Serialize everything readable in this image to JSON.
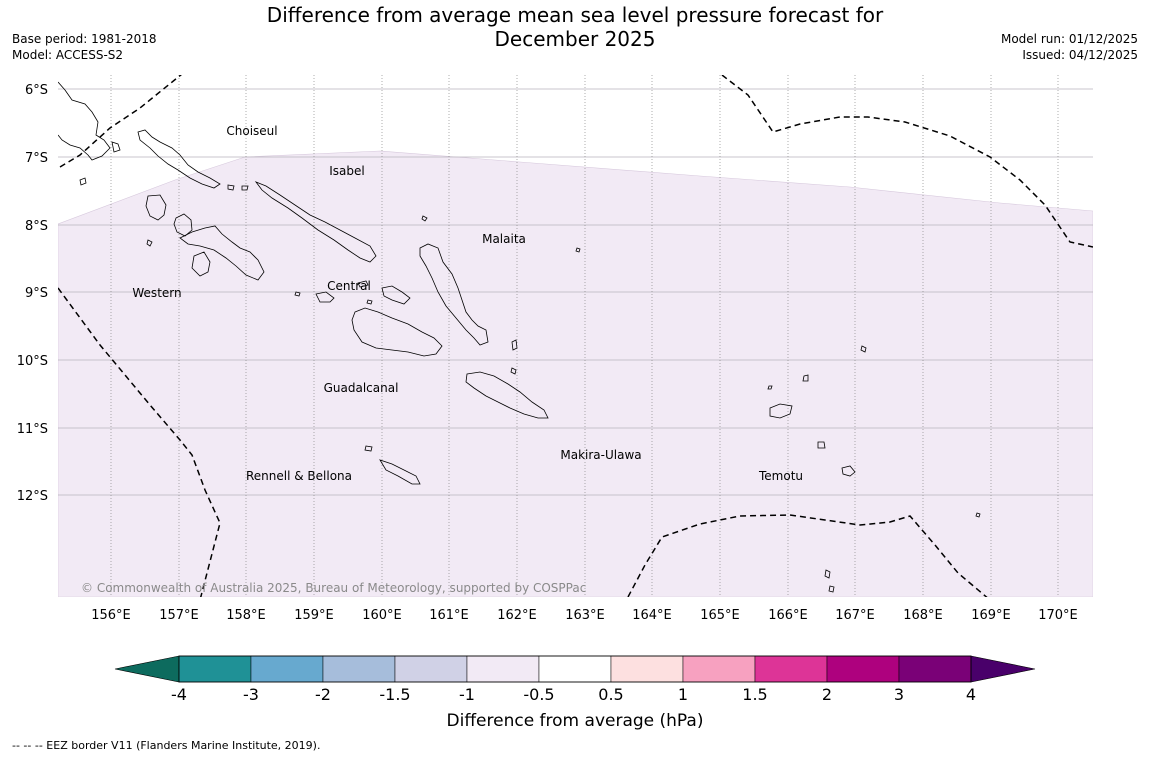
{
  "title_line1": "Difference from average mean sea level pressure forecast for",
  "title_line2": "December 2025",
  "base_period": "Base period: 1981-2018",
  "model": "Model: ACCESS-S2",
  "model_run": "Model run: 01/12/2025",
  "issued": "Issued: 04/12/2025",
  "latitudes": [
    "6°S",
    "7°S",
    "8°S",
    "9°S",
    "10°S",
    "11°S",
    "12°S"
  ],
  "longitudes": [
    "156°E",
    "157°E",
    "158°E",
    "159°E",
    "160°E",
    "161°E",
    "162°E",
    "163°E",
    "164°E",
    "165°E",
    "166°E",
    "167°E",
    "168°E",
    "169°E",
    "170°E"
  ],
  "regions": [
    "Choiseul",
    "Isabel",
    "Malaita",
    "Western",
    "Central",
    "Guadalcanal",
    "Makira-Ulawa",
    "Rennell & Bellona",
    "Temotu"
  ],
  "copyright": "© Commonwealth of Australia 2025, Bureau of Meteorology, supported by COSPPac",
  "colorbar": {
    "title": "Difference from average (hPa)",
    "ticks": [
      "-4",
      "-3",
      "-2",
      "-1.5",
      "-1",
      "-0.5",
      "0.5",
      "1",
      "1.5",
      "2",
      "3",
      "4"
    ],
    "colors": {
      "below_min": "#0d6b5e",
      "bins": [
        "#1f9196",
        "#67a9cf",
        "#a6bddb",
        "#d0d1e6",
        "#f2eaf5",
        "#ffffff",
        "#fde0e0",
        "#f7a1c0",
        "#dd3497",
        "#ae017e",
        "#7a0177"
      ],
      "above_max": "#49006a"
    }
  },
  "field_color": "#f2eaf5",
  "footnote": "--  --  -- EEZ border V11 (Flanders Marine Institute, 2019)."
}
